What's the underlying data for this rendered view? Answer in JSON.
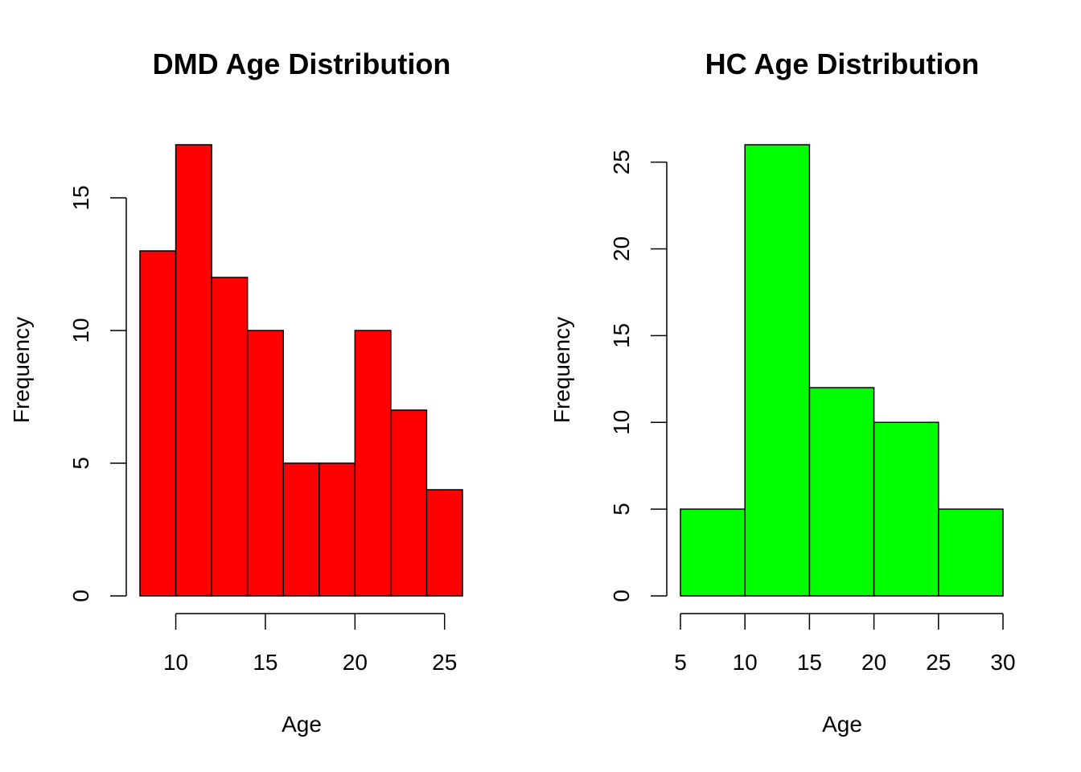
{
  "chart_data": [
    {
      "type": "bar",
      "title": "DMD Age Distribution",
      "xlabel": "Age",
      "ylabel": "Frequency",
      "bins": [
        [
          8,
          10
        ],
        [
          10,
          12
        ],
        [
          12,
          14
        ],
        [
          14,
          16
        ],
        [
          16,
          18
        ],
        [
          18,
          20
        ],
        [
          20,
          22
        ],
        [
          22,
          24
        ],
        [
          24,
          26
        ]
      ],
      "values": [
        13,
        17,
        12,
        10,
        5,
        5,
        10,
        7,
        4
      ],
      "xticks": [
        10,
        15,
        20,
        25
      ],
      "yticks": [
        0,
        5,
        10,
        15
      ],
      "color": "#ff0000",
      "grid": false
    },
    {
      "type": "bar",
      "title": "HC Age Distribution",
      "xlabel": "Age",
      "ylabel": "Frequency",
      "bins": [
        [
          5,
          10
        ],
        [
          10,
          15
        ],
        [
          15,
          20
        ],
        [
          20,
          25
        ],
        [
          25,
          30
        ]
      ],
      "values": [
        5,
        26,
        12,
        10,
        5
      ],
      "xticks": [
        5,
        10,
        15,
        20,
        25,
        30
      ],
      "yticks": [
        0,
        5,
        10,
        15,
        20,
        25
      ],
      "color": "#00ff00",
      "grid": false
    }
  ]
}
